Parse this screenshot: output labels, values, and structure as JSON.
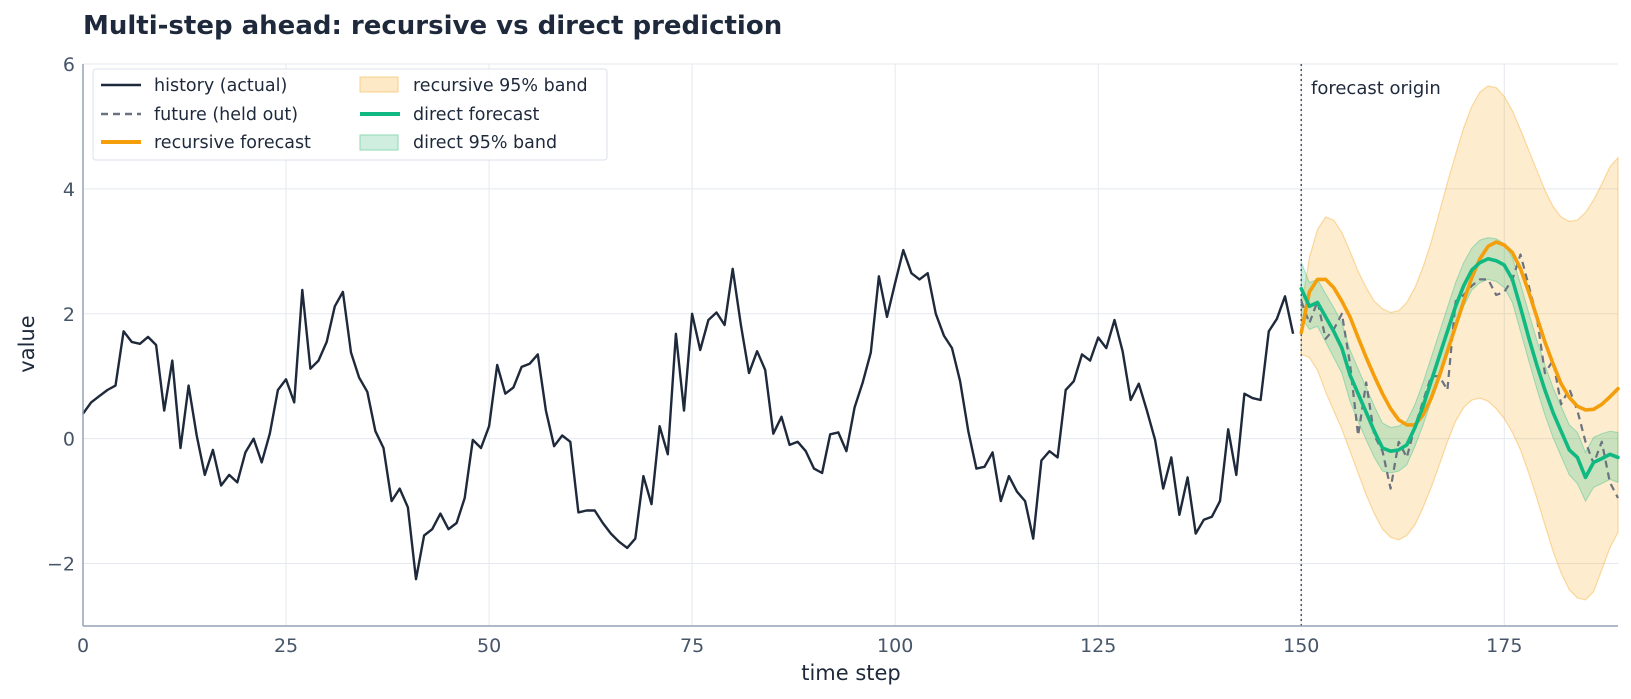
{
  "chart_data": {
    "type": "line",
    "title": "Multi-step ahead: recursive vs direct prediction",
    "xlabel": "time step",
    "ylabel": "value",
    "xlim": [
      0,
      189
    ],
    "ylim": [
      -3,
      6
    ],
    "xticks": [
      0,
      25,
      50,
      75,
      100,
      125,
      150,
      175
    ],
    "yticks": [
      -2,
      0,
      2,
      4,
      6
    ],
    "ytick_labels": [
      "−2",
      "0",
      "2",
      "4",
      "6"
    ],
    "grid": true,
    "legend_position": "top-left",
    "annotation": {
      "text": "forecast origin",
      "x": 150
    },
    "colors": {
      "history": "#1e293b",
      "future": "#6b7280",
      "recursive": "#f59e0b",
      "direct": "#10b981",
      "grid": "#e5e9ef",
      "axis": "#94a3b8"
    },
    "history": {
      "name": "history (actual)",
      "x_start": 0,
      "values": [
        0.4,
        0.58,
        0.68,
        0.78,
        0.85,
        1.72,
        1.55,
        1.52,
        1.63,
        1.5,
        0.45,
        1.25,
        -0.15,
        0.85,
        0.05,
        -0.58,
        -0.18,
        -0.75,
        -0.58,
        -0.7,
        -0.22,
        0.0,
        -0.38,
        0.08,
        0.78,
        0.95,
        0.58,
        2.38,
        1.12,
        1.25,
        1.55,
        2.12,
        2.35,
        1.38,
        0.98,
        0.75,
        0.12,
        -0.15,
        -1.0,
        -0.8,
        -1.1,
        -2.25,
        -1.55,
        -1.45,
        -1.2,
        -1.45,
        -1.35,
        -0.95,
        -0.02,
        -0.15,
        0.2,
        1.18,
        0.72,
        0.82,
        1.15,
        1.2,
        1.35,
        0.45,
        -0.12,
        0.05,
        -0.05,
        -1.18,
        -1.15,
        -1.15,
        -1.35,
        -1.52,
        -1.65,
        -1.75,
        -1.6,
        -0.6,
        -1.05,
        0.2,
        -0.25,
        1.68,
        0.45,
        2.0,
        1.42,
        1.9,
        2.02,
        1.82,
        2.72,
        1.82,
        1.05,
        1.4,
        1.1,
        0.08,
        0.35,
        -0.1,
        -0.05,
        -0.2,
        -0.48,
        -0.55,
        0.07,
        0.1,
        -0.2,
        0.5,
        0.9,
        1.38,
        2.6,
        1.95,
        2.5,
        3.02,
        2.65,
        2.55,
        2.65,
        2.0,
        1.65,
        1.45,
        0.92,
        0.12,
        -0.48,
        -0.45,
        -0.22,
        -1.0,
        -0.6,
        -0.85,
        -1.0,
        -1.6,
        -0.35,
        -0.2,
        -0.3,
        0.78,
        0.92,
        1.35,
        1.25,
        1.62,
        1.45,
        1.9,
        1.4,
        0.62,
        0.88,
        0.45,
        -0.02,
        -0.8,
        -0.3,
        -1.22,
        -0.62,
        -1.52,
        -1.3,
        -1.25,
        -1.0,
        0.15,
        -0.58,
        0.72,
        0.65,
        0.62,
        1.72,
        1.92,
        2.28,
        1.68
      ]
    },
    "future": {
      "name": "future (held out)",
      "x_start": 150,
      "values": [
        2.2,
        1.85,
        2.2,
        1.6,
        1.75,
        2.0,
        1.2,
        0.05,
        0.9,
        0.05,
        -0.2,
        -0.8,
        -0.05,
        -0.3,
        0.2,
        0.6,
        1.0,
        1.0,
        0.78,
        2.2,
        2.3,
        2.45,
        2.55,
        2.55,
        2.3,
        2.35,
        2.55,
        2.95,
        2.45,
        1.95,
        1.05,
        1.25,
        0.55,
        0.8,
        0.45,
        -0.05,
        -0.4,
        -0.05,
        -0.7,
        -0.95
      ]
    },
    "recursive": {
      "name": "recursive forecast",
      "band_name": "recursive 95% band",
      "x_start": 150,
      "values": [
        1.7,
        2.35,
        2.55,
        2.55,
        2.42,
        2.2,
        1.95,
        1.62,
        1.3,
        1.0,
        0.72,
        0.48,
        0.3,
        0.22,
        0.22,
        0.38,
        0.65,
        1.0,
        1.4,
        1.8,
        2.2,
        2.58,
        2.88,
        3.08,
        3.15,
        3.1,
        2.98,
        2.72,
        2.35,
        1.95,
        1.55,
        1.2,
        0.88,
        0.66,
        0.52,
        0.46,
        0.47,
        0.55,
        0.67,
        0.8
      ],
      "band_lower": [
        1.35,
        1.3,
        1.1,
        0.75,
        0.45,
        0.15,
        -0.2,
        -0.55,
        -0.9,
        -1.2,
        -1.45,
        -1.58,
        -1.62,
        -1.55,
        -1.38,
        -1.1,
        -0.78,
        -0.42,
        -0.05,
        0.28,
        0.5,
        0.62,
        0.65,
        0.6,
        0.48,
        0.32,
        0.1,
        -0.18,
        -0.55,
        -0.95,
        -1.38,
        -1.8,
        -2.15,
        -2.42,
        -2.55,
        -2.58,
        -2.45,
        -2.1,
        -1.75,
        -1.5
      ],
      "band_upper": [
        2.1,
        2.9,
        3.35,
        3.55,
        3.5,
        3.3,
        3.0,
        2.68,
        2.42,
        2.2,
        2.08,
        2.02,
        2.05,
        2.18,
        2.42,
        2.75,
        3.15,
        3.62,
        4.1,
        4.55,
        4.98,
        5.32,
        5.55,
        5.65,
        5.62,
        5.48,
        5.25,
        4.95,
        4.62,
        4.3,
        3.98,
        3.72,
        3.55,
        3.48,
        3.5,
        3.62,
        3.82,
        4.08,
        4.35,
        4.5
      ]
    },
    "direct": {
      "name": "direct forecast",
      "band_name": "direct 95% band",
      "x_start": 150,
      "values": [
        2.4,
        2.12,
        2.18,
        1.95,
        1.72,
        1.45,
        1.02,
        0.72,
        0.42,
        0.12,
        -0.15,
        -0.2,
        -0.18,
        -0.1,
        0.18,
        0.52,
        0.92,
        1.32,
        1.72,
        2.12,
        2.45,
        2.7,
        2.82,
        2.88,
        2.85,
        2.78,
        2.55,
        2.1,
        1.62,
        1.18,
        0.78,
        0.42,
        0.12,
        -0.18,
        -0.3,
        -0.62,
        -0.38,
        -0.32,
        -0.25,
        -0.3
      ],
      "band_lower": [
        1.95,
        1.75,
        1.8,
        1.55,
        1.3,
        1.05,
        0.6,
        0.28,
        -0.02,
        -0.3,
        -0.52,
        -0.55,
        -0.52,
        -0.42,
        -0.12,
        0.22,
        0.6,
        1.0,
        1.4,
        1.8,
        2.12,
        2.38,
        2.5,
        2.55,
        2.52,
        2.42,
        2.18,
        1.72,
        1.25,
        0.8,
        0.38,
        0.02,
        -0.28,
        -0.58,
        -0.72,
        -1.0,
        -0.78,
        -0.72,
        -0.65,
        -0.7
      ],
      "band_upper": [
        2.82,
        2.5,
        2.55,
        2.32,
        2.1,
        1.85,
        1.42,
        1.12,
        0.82,
        0.52,
        0.25,
        0.18,
        0.2,
        0.28,
        0.55,
        0.9,
        1.3,
        1.7,
        2.1,
        2.5,
        2.82,
        3.05,
        3.18,
        3.22,
        3.2,
        3.12,
        2.9,
        2.48,
        2.02,
        1.58,
        1.18,
        0.82,
        0.52,
        0.22,
        0.1,
        -0.22,
        0.02,
        0.08,
        0.12,
        0.1
      ]
    },
    "legend": {
      "history": "history (actual)",
      "future": "future (held out)",
      "recursive": "recursive forecast",
      "recursive_band": "recursive 95% band",
      "direct": "direct forecast",
      "direct_band": "direct 95% band"
    }
  }
}
